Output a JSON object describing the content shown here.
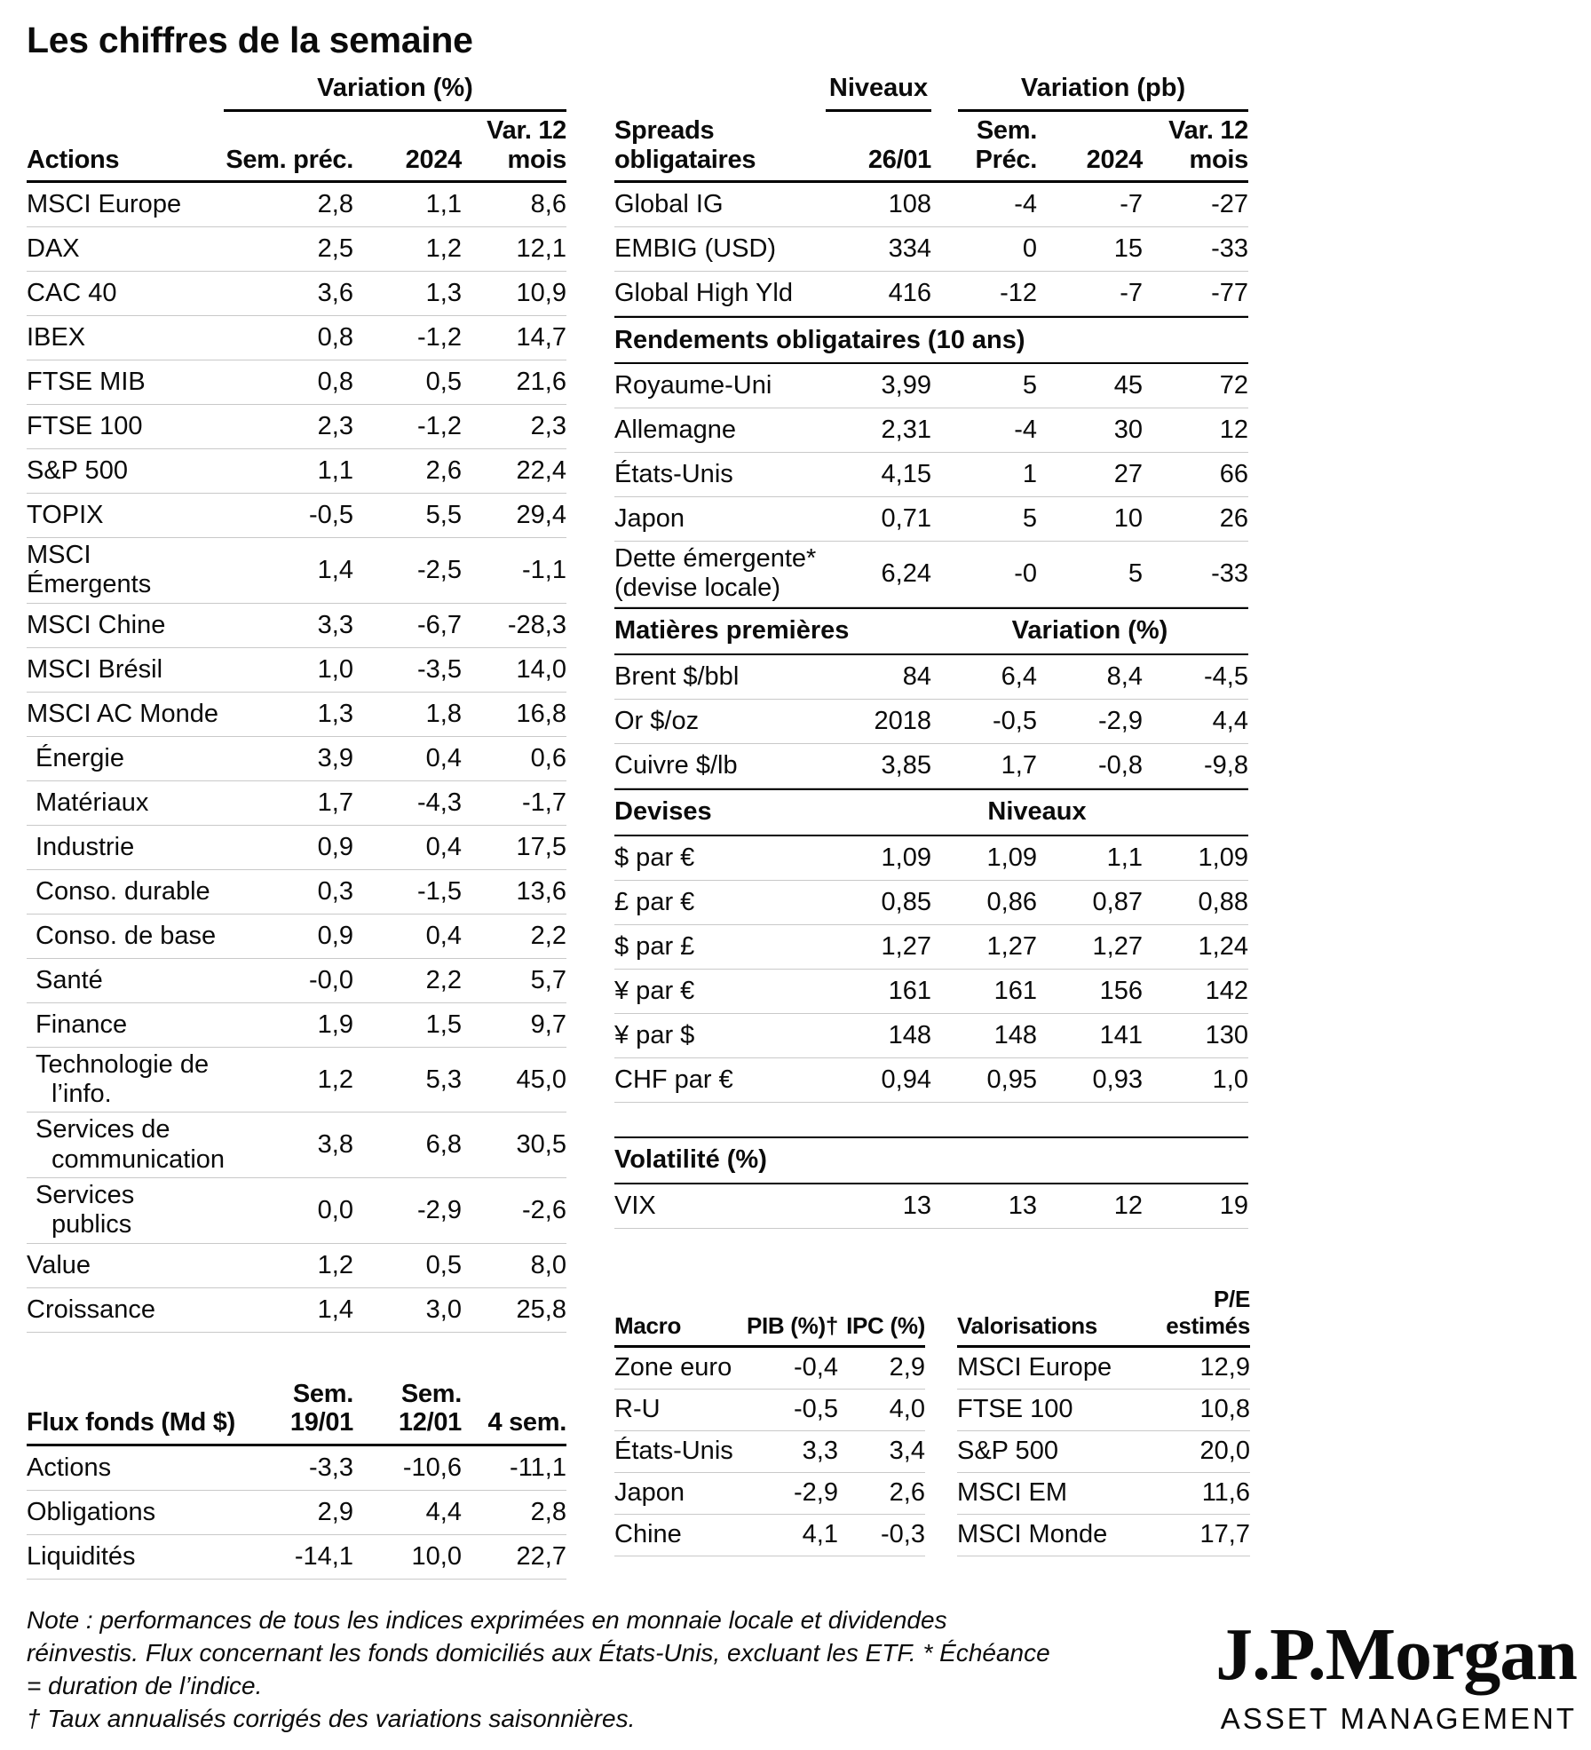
{
  "title": "Les chiffres de la semaine",
  "actions": {
    "group_header": "Variation (%)",
    "columns": [
      "Actions",
      "Sem. préc.",
      "2024",
      "Var. 12\nmois"
    ],
    "rows": [
      {
        "label": "MSCI Europe",
        "values": [
          "2,8",
          "1,1",
          "8,6"
        ]
      },
      {
        "label": "DAX",
        "values": [
          "2,5",
          "1,2",
          "12,1"
        ]
      },
      {
        "label": "CAC 40",
        "values": [
          "3,6",
          "1,3",
          "10,9"
        ]
      },
      {
        "label": "IBEX",
        "values": [
          "0,8",
          "-1,2",
          "14,7"
        ]
      },
      {
        "label": "FTSE MIB",
        "values": [
          "0,8",
          "0,5",
          "21,6"
        ]
      },
      {
        "label": "FTSE 100",
        "values": [
          "2,3",
          "-1,2",
          "2,3"
        ]
      },
      {
        "label": "S&P 500",
        "values": [
          "1,1",
          "2,6",
          "22,4"
        ]
      },
      {
        "label": "TOPIX",
        "values": [
          "-0,5",
          "5,5",
          "29,4"
        ]
      },
      {
        "label": "MSCI Émergents",
        "values": [
          "1,4",
          "-2,5",
          "-1,1"
        ]
      },
      {
        "label": "MSCI Chine",
        "values": [
          "3,3",
          "-6,7",
          "-28,3"
        ]
      },
      {
        "label": "MSCI Brésil",
        "values": [
          "1,0",
          "-3,5",
          "14,0"
        ]
      },
      {
        "label": "MSCI AC Monde",
        "values": [
          "1,3",
          "1,8",
          "16,8"
        ]
      },
      {
        "label": "Énergie",
        "values": [
          "3,9",
          "0,4",
          "0,6"
        ],
        "indent": true
      },
      {
        "label": "Matériaux",
        "values": [
          "1,7",
          "-4,3",
          "-1,7"
        ],
        "indent": true
      },
      {
        "label": "Industrie",
        "values": [
          "0,9",
          "0,4",
          "17,5"
        ],
        "indent": true
      },
      {
        "label": "Conso. durable",
        "values": [
          "0,3",
          "-1,5",
          "13,6"
        ],
        "indent": true
      },
      {
        "label": "Conso. de base",
        "values": [
          "0,9",
          "0,4",
          "2,2"
        ],
        "indent": true
      },
      {
        "label": "Santé",
        "values": [
          "-0,0",
          "2,2",
          "5,7"
        ],
        "indent": true
      },
      {
        "label": "Finance",
        "values": [
          "1,9",
          "1,5",
          "9,7"
        ],
        "indent": true
      },
      {
        "label": "Technologie de l’info.",
        "values": [
          "1,2",
          "5,3",
          "45,0"
        ],
        "indent": true
      },
      {
        "label": "Services de communication",
        "values": [
          "3,8",
          "6,8",
          "30,5"
        ],
        "indent": true
      },
      {
        "label": "Services publics",
        "values": [
          "0,0",
          "-2,9",
          "-2,6"
        ],
        "indent": true
      },
      {
        "label": "Value",
        "values": [
          "1,2",
          "0,5",
          "8,0"
        ]
      },
      {
        "label": "Croissance",
        "values": [
          "1,4",
          "3,0",
          "25,8"
        ]
      }
    ]
  },
  "flux": {
    "columns": [
      "Flux fonds (Md $)",
      "Sem.\n19/01",
      "Sem.\n12/01",
      "4 sem."
    ],
    "rows": [
      {
        "label": "Actions",
        "values": [
          "-3,3",
          "-10,6",
          "-11,1"
        ]
      },
      {
        "label": "Obligations",
        "values": [
          "2,9",
          "4,4",
          "2,8"
        ]
      },
      {
        "label": "Liquidités",
        "values": [
          "-14,1",
          "10,0",
          "22,7"
        ]
      }
    ]
  },
  "bonds": {
    "niveaux_header": "Niveaux",
    "variation_header": "Variation (pb)",
    "columns": [
      "Spreads\nobligataires",
      "26/01",
      "Sem.\nPréc.",
      "2024",
      "Var. 12\nmois"
    ],
    "spreads_rows": [
      {
        "label": "Global IG",
        "values": [
          "108",
          "-4",
          "-7",
          "-27"
        ]
      },
      {
        "label": "EMBIG (USD)",
        "values": [
          "334",
          "0",
          "15",
          "-33"
        ]
      },
      {
        "label": "Global High Yld",
        "values": [
          "416",
          "-12",
          "-7",
          "-77"
        ]
      }
    ],
    "sections": [
      {
        "header": "Rendements obligataires (10 ans)",
        "rows": [
          {
            "label": "Royaume-Uni",
            "values": [
              "3,99",
              "5",
              "45",
              "72"
            ]
          },
          {
            "label": "Allemagne",
            "values": [
              "2,31",
              "-4",
              "30",
              "12"
            ]
          },
          {
            "label": "États-Unis",
            "values": [
              "4,15",
              "1",
              "27",
              "66"
            ]
          },
          {
            "label": "Japon",
            "values": [
              "0,71",
              "5",
              "10",
              "26"
            ]
          },
          {
            "label": "Dette émergente*\n(devise locale)",
            "values": [
              "6,24",
              "-0",
              "5",
              "-33"
            ]
          }
        ]
      },
      {
        "header": "Matières premières",
        "header_right": "Variation (%)",
        "right_cols": "3 / 6",
        "rows": [
          {
            "label": "Brent $/bbl",
            "values": [
              "84",
              "6,4",
              "8,4",
              "-4,5"
            ]
          },
          {
            "label": "Or $/oz",
            "values": [
              "2018",
              "-0,5",
              "-2,9",
              "4,4"
            ]
          },
          {
            "label": "Cuivre $/lb",
            "values": [
              "3,85",
              "1,7",
              "-0,8",
              "-9,8"
            ]
          }
        ]
      },
      {
        "header": "Devises",
        "header_right": "Niveaux",
        "right_cols": "2 / 6",
        "rows": [
          {
            "label": "$ par €",
            "values": [
              "1,09",
              "1,09",
              "1,1",
              "1,09"
            ]
          },
          {
            "label": "£ par €",
            "values": [
              "0,85",
              "0,86",
              "0,87",
              "0,88"
            ]
          },
          {
            "label": "$ par £",
            "values": [
              "1,27",
              "1,27",
              "1,27",
              "1,24"
            ]
          },
          {
            "label": "¥ par €",
            "values": [
              "161",
              "161",
              "156",
              "142"
            ]
          },
          {
            "label": "¥ par $",
            "values": [
              "148",
              "148",
              "141",
              "130"
            ]
          },
          {
            "label": "CHF par €",
            "values": [
              "0,94",
              "0,95",
              "0,93",
              "1,0"
            ]
          }
        ]
      },
      {
        "header": "Volatilité (%)",
        "gap_before": true,
        "rows": [
          {
            "label": "VIX",
            "values": [
              "13",
              "13",
              "12",
              "19"
            ]
          }
        ]
      }
    ]
  },
  "macro": {
    "columns": [
      "Macro",
      "PIB (%)†",
      "IPC (%)"
    ],
    "rows": [
      {
        "label": "Zone euro",
        "values": [
          "-0,4",
          "2,9"
        ]
      },
      {
        "label": "R-U",
        "values": [
          "-0,5",
          "4,0"
        ]
      },
      {
        "label": "États-Unis",
        "values": [
          "3,3",
          "3,4"
        ]
      },
      {
        "label": "Japon",
        "values": [
          "-2,9",
          "2,6"
        ]
      },
      {
        "label": "Chine",
        "values": [
          "4,1",
          "-0,3"
        ]
      }
    ]
  },
  "valorisations": {
    "columns": [
      "Valorisations",
      "P/E\nestimés"
    ],
    "rows": [
      {
        "label": "MSCI Europe",
        "values": [
          "12,9"
        ]
      },
      {
        "label": "FTSE 100",
        "values": [
          "10,8"
        ]
      },
      {
        "label": "S&P 500",
        "values": [
          "20,0"
        ]
      },
      {
        "label": "MSCI EM",
        "values": [
          "11,6"
        ]
      },
      {
        "label": "MSCI Monde",
        "values": [
          "17,7"
        ]
      }
    ]
  },
  "notes": [
    "Note : performances de tous les indices exprimées en monnaie locale et dividendes réinvestis. Flux concernant les fonds domiciliés aux États-Unis, excluant les ETF. * Échéance = duration de l’indice.",
    "† Taux annualisés corrigés des variations saisonnières."
  ],
  "logo": {
    "brand": "J.P.Morgan",
    "division": "ASSET MANAGEMENT"
  }
}
